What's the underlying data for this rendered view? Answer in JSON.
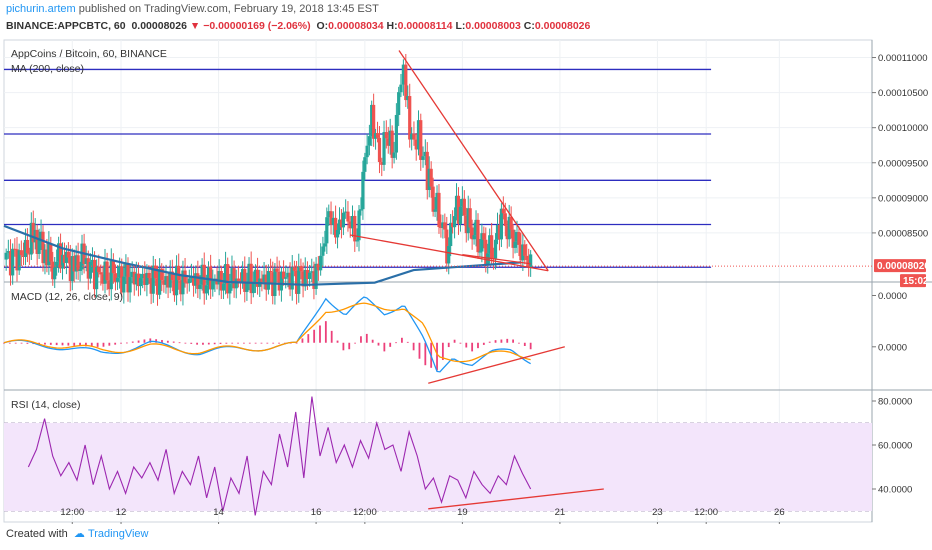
{
  "header": {
    "author": "pichurin.artem",
    "published_text": " published on TradingView.com, February 19, 2018 13:45 EST",
    "symbol_line": "BINANCE:APPCBTC, 60",
    "price": "0.00008026",
    "change_arrow": "▼",
    "change": "−0.00000169 (−2.06%)",
    "o_label": "O:",
    "o_value": "0.00008034",
    "h_label": "H:",
    "h_value": "0.00008114",
    "l_label": "L:",
    "l_value": "0.00008003",
    "c_label": "C:",
    "c_value": "0.00008026"
  },
  "footer": {
    "created_with": "Created with",
    "brand": "TradingView"
  },
  "colors": {
    "up": "#26a69a",
    "down": "#ef5350",
    "hline": "#2d2dbf",
    "ma": "#2a6fa8",
    "trend": "#e53935",
    "macd": "#2196f3",
    "signal": "#ff9800",
    "hist_pos": "#ec407a",
    "rsi": "#9c27b0",
    "rsi_band": "#f3e5fb",
    "price_tag": "#ef5350",
    "grid": "#eef1f4"
  },
  "chart_data": [
    {
      "type": "candlestick",
      "title": "AppCoins / Bitcoin, 60, BINANCE",
      "indicator": "MA (200, close)",
      "ylim": [
        7.8e-05,
        0.0001125
      ],
      "y_ticks": [
        "0.00011000",
        "0.00010500",
        "0.00010000",
        "0.00009500",
        "0.00009000",
        "0.00008500"
      ],
      "x_ticks": [
        {
          "label": "12:00",
          "x": 0.7
        },
        {
          "label": "12",
          "x": 1.2
        },
        {
          "label": "14",
          "x": 2.2
        },
        {
          "label": "16",
          "x": 3.2
        },
        {
          "label": "12:00",
          "x": 3.7
        },
        {
          "label": "19",
          "x": 4.7
        },
        {
          "label": "21",
          "x": 5.7
        },
        {
          "label": "23",
          "x": 6.7
        },
        {
          "label": "12:00",
          "x": 7.2
        },
        {
          "label": "26",
          "x": 7.95
        }
      ],
      "xlim": [
        0,
        8.9
      ],
      "last_price_label": "0.00008026",
      "countdown_label": "15:02",
      "last_price": 8.026e-05,
      "horizontal_levels": [
        0.0001083,
        9.91e-05,
        9.25e-05,
        8.62e-05,
        8.01e-05
      ],
      "ma_points": [
        [
          0,
          8.6e-05
        ],
        [
          0.6,
          8.28e-05
        ],
        [
          1.2,
          8.08e-05
        ],
        [
          1.8,
          7.9e-05
        ],
        [
          2.3,
          7.8e-05
        ],
        [
          3.1,
          7.76e-05
        ],
        [
          3.8,
          7.79e-05
        ],
        [
          4.2,
          7.97e-05
        ],
        [
          4.7,
          8.02e-05
        ],
        [
          5.3,
          8.08e-05
        ]
      ],
      "trendlines": [
        [
          [
            4.05,
            0.000111
          ],
          [
            5.58,
            7.96e-05
          ]
        ],
        [
          [
            3.55,
            8.47e-05
          ],
          [
            5.58,
            7.96e-05
          ]
        ],
        [
          [
            4.7,
            8.19e-05
          ],
          [
            5.4,
            8.06e-05
          ]
        ]
      ],
      "close_series": [
        {
          "x": 0.0,
          "c": 8.12e-05
        },
        {
          "x": 0.2,
          "c": 8.18e-05
        },
        {
          "x": 0.3,
          "c": 8.45e-05
        },
        {
          "x": 0.4,
          "c": 8.3e-05
        },
        {
          "x": 0.5,
          "c": 8.05e-05
        },
        {
          "x": 0.6,
          "c": 8.22e-05
        },
        {
          "x": 0.7,
          "c": 8e-05
        },
        {
          "x": 0.8,
          "c": 8.1e-05
        },
        {
          "x": 0.95,
          "c": 7.92e-05
        },
        {
          "x": 1.1,
          "c": 7.87e-05
        },
        {
          "x": 1.4,
          "c": 7.84e-05
        },
        {
          "x": 1.9,
          "c": 7.81e-05
        },
        {
          "x": 2.6,
          "c": 7.83e-05
        },
        {
          "x": 3.2,
          "c": 7.9e-05
        },
        {
          "x": 3.27,
          "c": 8.3e-05
        },
        {
          "x": 3.33,
          "c": 8.85e-05
        },
        {
          "x": 3.4,
          "c": 8.5e-05
        },
        {
          "x": 3.48,
          "c": 8.7e-05
        },
        {
          "x": 3.55,
          "c": 8.62e-05
        },
        {
          "x": 3.62,
          "c": 8.4e-05
        },
        {
          "x": 3.7,
          "c": 9.6e-05
        },
        {
          "x": 3.77,
          "c": 0.000102
        },
        {
          "x": 3.85,
          "c": 9.6e-05
        },
        {
          "x": 3.92,
          "c": 9.85e-05
        },
        {
          "x": 4.0,
          "c": 9.65e-05
        },
        {
          "x": 4.07,
          "c": 0.000108
        },
        {
          "x": 4.12,
          "c": 0.000105
        },
        {
          "x": 4.18,
          "c": 9.85e-05
        },
        {
          "x": 4.25,
          "c": 9.9e-05
        },
        {
          "x": 4.32,
          "c": 9.45e-05
        },
        {
          "x": 4.4,
          "c": 9e-05
        },
        {
          "x": 4.48,
          "c": 8.65e-05
        },
        {
          "x": 4.56,
          "c": 8.2e-05
        },
        {
          "x": 4.62,
          "c": 8.9e-05
        },
        {
          "x": 4.7,
          "c": 8.8e-05
        },
        {
          "x": 4.78,
          "c": 8.58e-05
        },
        {
          "x": 4.86,
          "c": 8.42e-05
        },
        {
          "x": 4.94,
          "c": 8.3e-05
        },
        {
          "x": 5.02,
          "c": 8.25e-05
        },
        {
          "x": 5.1,
          "c": 8.75e-05
        },
        {
          "x": 5.18,
          "c": 8.5e-05
        },
        {
          "x": 5.26,
          "c": 8.32e-05
        },
        {
          "x": 5.34,
          "c": 8.15e-05
        },
        {
          "x": 5.4,
          "c": 8.03e-05
        }
      ]
    },
    {
      "type": "line",
      "title": "MACD (12, 26, close, 9)",
      "ylim": [
        -3.5e-06,
        4.5e-06
      ],
      "y_ticks": [
        "0.0000",
        "0.0000"
      ],
      "y_tick_values": [
        3.5e-06,
        -3e-07
      ],
      "series": [
        {
          "values_x": [
            0,
            0.5,
            1.0,
            1.5,
            2.0,
            2.5,
            3.0,
            3.3,
            3.5,
            3.7,
            3.9,
            4.1,
            4.3,
            4.45,
            4.6,
            4.8,
            5.0,
            5.2,
            5.4
          ],
          "values_y": [
            0.0,
            -2e-07,
            -8e-07,
            -1e-07,
            -7e-07,
            -4e-07,
            -2e-07,
            3.5e-06,
            2e-06,
            3.2e-06,
            2.2e-06,
            3e-06,
            2e-07,
            -2.5e-06,
            -1e-06,
            -1.5e-06,
            -8e-07,
            -6e-07,
            -1.3e-06
          ]
        },
        {
          "values_x": [
            0,
            0.5,
            1.0,
            1.5,
            2.0,
            2.5,
            3.0,
            3.3,
            3.5,
            3.7,
            3.9,
            4.1,
            4.3,
            4.45,
            4.6,
            4.8,
            5.0,
            5.2,
            5.4
          ],
          "values_y": [
            0.0,
            -1e-07,
            -6e-07,
            -3e-07,
            -6e-07,
            -4e-07,
            -2e-07,
            2.5e-06,
            2.5e-06,
            2.7e-06,
            2.6e-06,
            2.7e-06,
            1.2e-06,
            -1.2e-06,
            -1.2e-06,
            -1.1e-06,
            -9e-07,
            -8e-07,
            -1e-06
          ]
        }
      ],
      "trendline": [
        [
          4.35,
          -3e-06
        ],
        [
          5.75,
          -3e-07
        ]
      ]
    },
    {
      "type": "line",
      "title": "RSI (14, close)",
      "ylim": [
        25,
        85
      ],
      "y_ticks": [
        "80.0000",
        "60.0000",
        "40.0000"
      ],
      "y_tick_values": [
        80,
        60,
        40
      ],
      "band": [
        30,
        70
      ],
      "values": [
        50,
        58,
        72,
        55,
        46,
        52,
        44,
        60,
        42,
        55,
        40,
        48,
        38,
        50,
        45,
        52,
        44,
        58,
        38,
        48,
        42,
        55,
        36,
        50,
        30,
        45,
        38,
        55,
        28,
        48,
        42,
        65,
        50,
        75,
        45,
        82,
        55,
        68,
        52,
        60,
        50,
        62,
        54,
        70,
        58,
        60,
        48,
        66,
        55,
        40,
        45,
        34,
        46,
        44,
        36,
        48,
        42,
        38,
        46,
        42,
        55,
        47,
        40
      ],
      "x_range": [
        0.25,
        5.4
      ],
      "trendline": [
        [
          4.35,
          31
        ],
        [
          6.15,
          40
        ]
      ]
    }
  ]
}
